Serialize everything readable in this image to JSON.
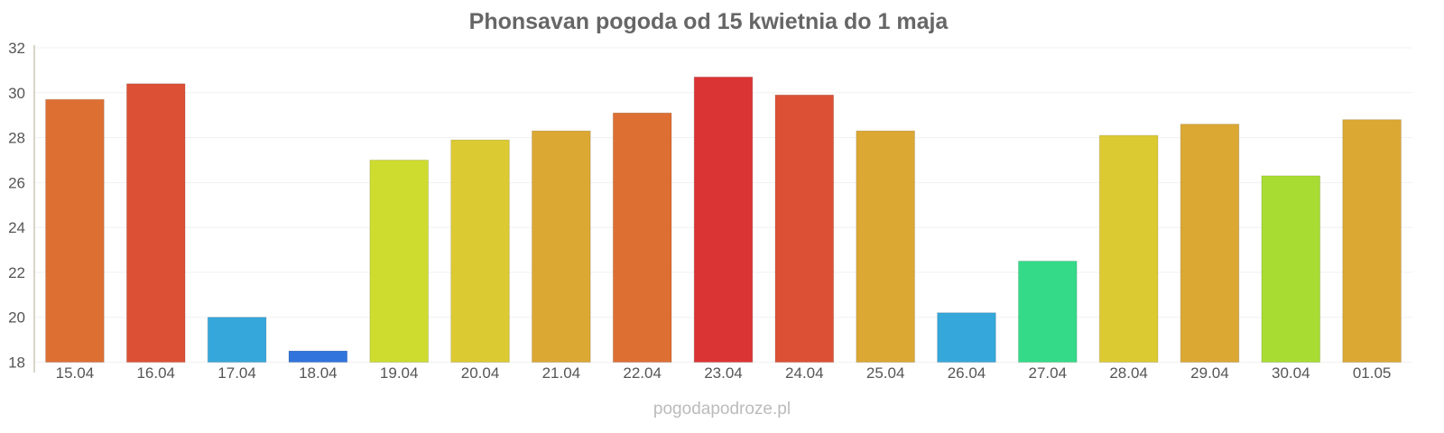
{
  "chart_data": {
    "type": "bar",
    "title": "Phonsavan pogoda od 15 kwietnia do 1 maja",
    "xlabel": "",
    "ylabel": "",
    "ylim": [
      18,
      32
    ],
    "yticks": [
      18,
      20,
      22,
      24,
      26,
      28,
      30,
      32
    ],
    "grid": true,
    "categories": [
      "15.04",
      "16.04",
      "17.04",
      "18.04",
      "19.04",
      "20.04",
      "21.04",
      "22.04",
      "23.04",
      "24.04",
      "25.04",
      "26.04",
      "27.04",
      "28.04",
      "29.04",
      "30.04",
      "01.05"
    ],
    "values": [
      29.7,
      30.4,
      20.0,
      18.5,
      27.0,
      27.9,
      28.3,
      29.1,
      30.7,
      29.9,
      28.3,
      20.2,
      22.5,
      28.1,
      28.6,
      26.3,
      28.8
    ],
    "colors": [
      "#dd6f33",
      "#dc5035",
      "#36a7db",
      "#3174dc",
      "#cddc2f",
      "#dcca33",
      "#dba833",
      "#dd6f33",
      "#db3434",
      "#dc5035",
      "#dba833",
      "#36a7db",
      "#35da89",
      "#dcca33",
      "#dba833",
      "#a8dc33",
      "#dba833"
    ]
  },
  "footer": "pogodapodroze.pl"
}
